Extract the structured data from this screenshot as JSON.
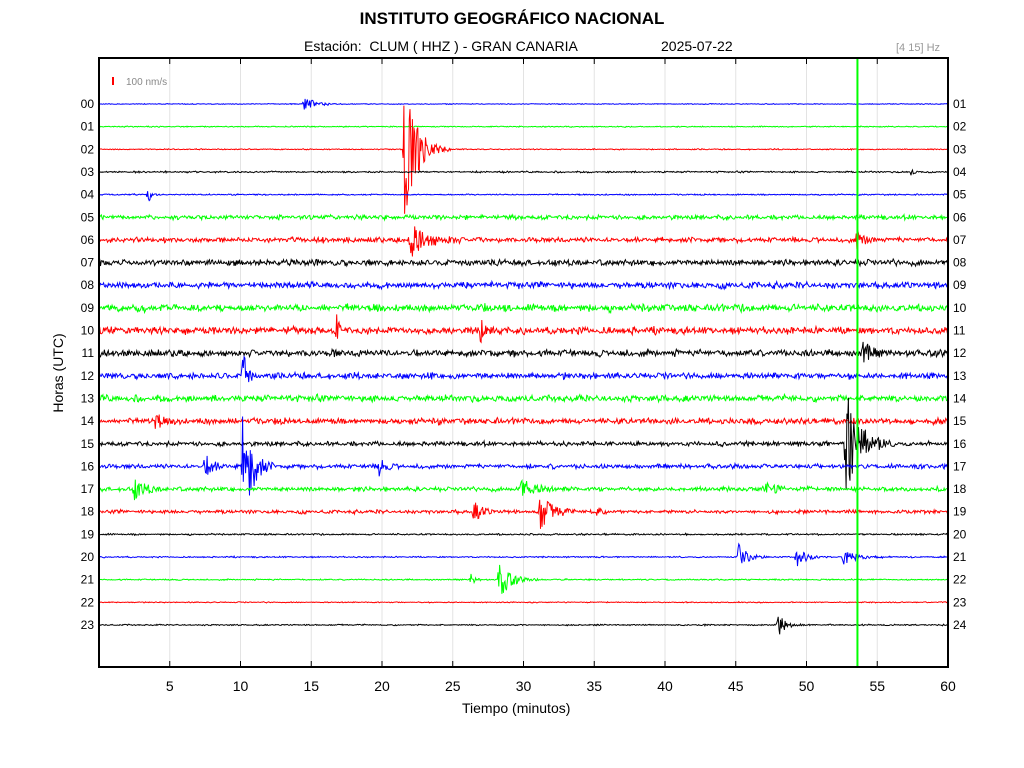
{
  "header": {
    "title": "INSTITUTO GEOGRÁFICO NACIONAL",
    "station_prefix": "Estación:",
    "station": "CLUM ( HHZ ) - GRAN CANARIA",
    "date": "2025-07-22",
    "filter": "[4 15] Hz"
  },
  "chart_data": {
    "type": "line",
    "title": "INSTITUTO GEOGRÁFICO NACIONAL",
    "xlabel": "Tiempo (minutos)",
    "ylabel": "Horas (UTC)",
    "xlim": [
      0,
      60
    ],
    "x_ticks": [
      "5",
      "10",
      "15",
      "20",
      "25",
      "30",
      "35",
      "40",
      "45",
      "50",
      "55",
      "60"
    ],
    "x_tick_values": [
      5,
      10,
      15,
      20,
      25,
      30,
      35,
      40,
      45,
      50,
      55,
      60
    ],
    "left_hour_labels": [
      "00",
      "01",
      "02",
      "03",
      "04",
      "05",
      "06",
      "07",
      "08",
      "09",
      "10",
      "11",
      "12",
      "13",
      "14",
      "15",
      "16",
      "17",
      "18",
      "19",
      "20",
      "21",
      "22",
      "23"
    ],
    "right_hour_labels": [
      "01",
      "02",
      "03",
      "04",
      "05",
      "06",
      "07",
      "08",
      "09",
      "10",
      "11",
      "12",
      "13",
      "14",
      "15",
      "16",
      "17",
      "18",
      "19",
      "20",
      "21",
      "22",
      "23",
      "24"
    ],
    "scale_label": "100 nm/s",
    "scale_color": "#ff0000",
    "grid": true,
    "current_time_minute": 53.6,
    "current_time_color": "#00ff00",
    "trace_colors": [
      "#0000ff",
      "#00ff00",
      "#ff0000",
      "#000000"
    ],
    "traces_noise_level": [
      0.3,
      0.4,
      0.4,
      0.6,
      0.5,
      1.6,
      1.8,
      2.2,
      2.3,
      2.7,
      2.6,
      2.5,
      2.2,
      2.4,
      2.2,
      1.6,
      1.6,
      1.6,
      1.3,
      0.6,
      0.5,
      0.5,
      0.4,
      0.5
    ],
    "events": [
      {
        "hour": 0,
        "minute": 14.5,
        "amplitude": 8,
        "duration": 1.5
      },
      {
        "hour": 2,
        "minute": 21.6,
        "amplitude": 80,
        "duration": 1.8
      },
      {
        "hour": 3,
        "minute": 57.4,
        "amplitude": 8,
        "duration": 0.3
      },
      {
        "hour": 4,
        "minute": 3.5,
        "amplitude": 10,
        "duration": 0.3
      },
      {
        "hour": 6,
        "minute": 22.0,
        "amplitude": 18,
        "duration": 2.5
      },
      {
        "hour": 6,
        "minute": 53.5,
        "amplitude": 10,
        "duration": 1.2
      },
      {
        "hour": 10,
        "minute": 16.8,
        "amplitude": 14,
        "duration": 0.4
      },
      {
        "hour": 10,
        "minute": 27.0,
        "amplitude": 12,
        "duration": 0.6
      },
      {
        "hour": 11,
        "minute": 54.0,
        "amplitude": 16,
        "duration": 1.0
      },
      {
        "hour": 12,
        "minute": 10.2,
        "amplitude": 28,
        "duration": 0.5
      },
      {
        "hour": 14,
        "minute": 4.0,
        "amplitude": 8,
        "duration": 1.0
      },
      {
        "hour": 15,
        "minute": 52.8,
        "amplitude": 60,
        "duration": 2.0
      },
      {
        "hour": 16,
        "minute": 10.2,
        "amplitude": 80,
        "duration": 1.2
      },
      {
        "hour": 16,
        "minute": 7.5,
        "amplitude": 12,
        "duration": 1.2
      },
      {
        "hour": 16,
        "minute": 19.8,
        "amplitude": 10,
        "duration": 0.8
      },
      {
        "hour": 17,
        "minute": 2.5,
        "amplitude": 10,
        "duration": 1.5
      },
      {
        "hour": 17,
        "minute": 29.8,
        "amplitude": 12,
        "duration": 1.8
      },
      {
        "hour": 17,
        "minute": 47.0,
        "amplitude": 9,
        "duration": 1.2
      },
      {
        "hour": 18,
        "minute": 26.5,
        "amplitude": 10,
        "duration": 1.2
      },
      {
        "hour": 18,
        "minute": 31.2,
        "amplitude": 22,
        "duration": 1.6
      },
      {
        "hour": 18,
        "minute": 35.3,
        "amplitude": 14,
        "duration": 0.4
      },
      {
        "hour": 20,
        "minute": 45.2,
        "amplitude": 14,
        "duration": 1.2
      },
      {
        "hour": 20,
        "minute": 49.3,
        "amplitude": 10,
        "duration": 1.4
      },
      {
        "hour": 20,
        "minute": 52.6,
        "amplitude": 8,
        "duration": 2.0
      },
      {
        "hour": 21,
        "minute": 28.3,
        "amplitude": 22,
        "duration": 1.5
      },
      {
        "hour": 21,
        "minute": 26.3,
        "amplitude": 6,
        "duration": 0.6
      },
      {
        "hour": 23,
        "minute": 48.0,
        "amplitude": 12,
        "duration": 1.2
      }
    ]
  }
}
